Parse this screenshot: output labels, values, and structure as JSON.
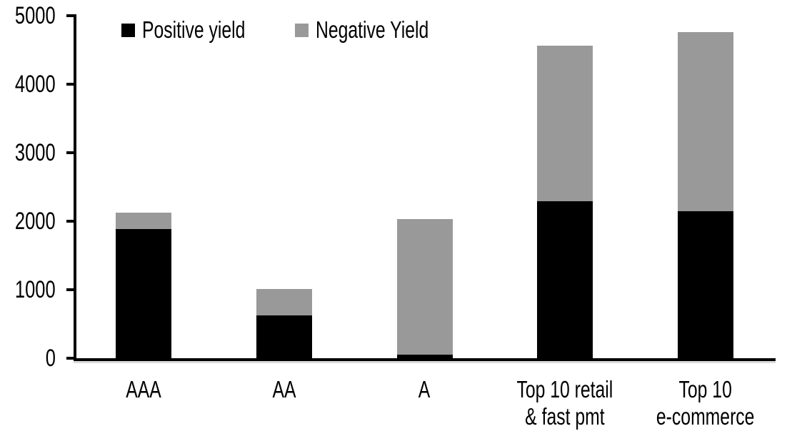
{
  "chart_data": {
    "type": "bar",
    "stacked": true,
    "title": "",
    "xlabel": "",
    "ylabel": "",
    "categories": [
      "AAA",
      "AA",
      "A",
      "Top 10 retail & fast pmt",
      "Top 10 e-commerce"
    ],
    "category_label_lines": [
      [
        "AAA"
      ],
      [
        "AA"
      ],
      [
        "A"
      ],
      [
        "Top 10 retail",
        "& fast pmt"
      ],
      [
        "Top 10",
        "e-commerce"
      ]
    ],
    "series": [
      {
        "name": "Positive yield",
        "color": "#000000",
        "values": [
          1890,
          620,
          50,
          2290,
          2150
        ]
      },
      {
        "name": "Negative Yield",
        "color": "#999999",
        "values": [
          230,
          390,
          1980,
          2270,
          2610
        ]
      }
    ],
    "ylim": [
      0,
      5000
    ],
    "yticks": [
      0,
      1000,
      2000,
      3000,
      4000,
      5000
    ],
    "grid": false,
    "legend_position": "top",
    "colors": {
      "positive": "#000000",
      "negative": "#999999",
      "axis": "#000000",
      "background": "#ffffff"
    }
  }
}
